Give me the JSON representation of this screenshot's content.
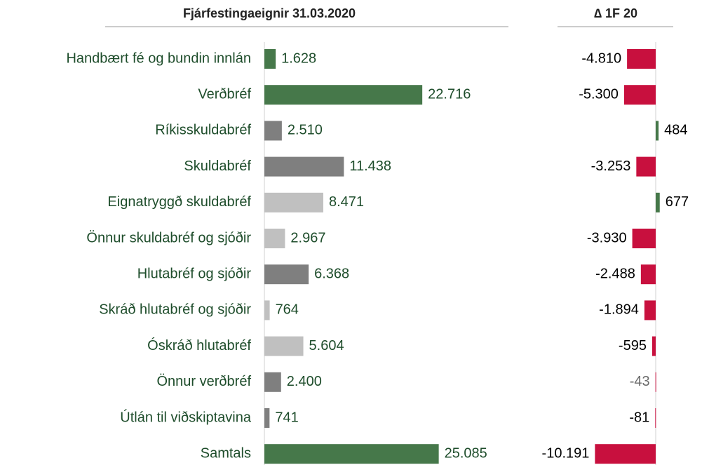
{
  "chart_data": [
    {
      "type": "bar",
      "orientation": "horizontal",
      "title": "Fjárfestingaeignir 31.03.2020",
      "categories": [
        "Handbært fé og bundin innlán",
        "Verðbréf",
        "Ríkisskuldabréf",
        "Skuldabréf",
        "Eignatryggð skuldabréf",
        "Önnur skuldabréf og sjóðir",
        "Hlutabréf og sjóðir",
        "Skráð hlutabréf og sjóðir",
        "Óskráð hlutabréf",
        "Önnur verðbréf",
        "Útlán til viðskiptavina",
        "Samtals"
      ],
      "values": [
        1628,
        22716,
        2510,
        11438,
        8471,
        2967,
        6368,
        764,
        5604,
        2400,
        741,
        25085
      ],
      "value_labels": [
        "1.628",
        "22.716",
        "2.510",
        "11.438",
        "8.471",
        "2.967",
        "6.368",
        "764",
        "5.604",
        "2.400",
        "741",
        "25.085"
      ],
      "colors": [
        "#46784a",
        "#46784a",
        "#7f7f7f",
        "#7f7f7f",
        "#c0c0c0",
        "#c0c0c0",
        "#7f7f7f",
        "#c0c0c0",
        "#c0c0c0",
        "#7f7f7f",
        "#7f7f7f",
        "#46784a"
      ],
      "xlim": [
        0,
        34000
      ]
    },
    {
      "type": "bar",
      "orientation": "horizontal",
      "title": "∆ 1F 20",
      "values": [
        -4810,
        -5300,
        484,
        -3253,
        677,
        -3930,
        -2488,
        -1894,
        -595,
        -43,
        -81,
        -10191
      ],
      "value_labels": [
        "-4.810",
        "-5.300",
        "484",
        "-3.253",
        "677",
        "-3.930",
        "-2.488",
        "-1.894",
        "-595",
        "-43",
        "-81",
        "-10.191"
      ],
      "colors": [
        "#c8103e",
        "#c8103e",
        "#46784a",
        "#c8103e",
        "#46784a",
        "#c8103e",
        "#c8103e",
        "#c8103e",
        "#c8103e",
        "#c8103e",
        "#c8103e",
        "#c8103e"
      ],
      "value_label_colors": [
        "#000000",
        "#000000",
        "#000000",
        "#000000",
        "#000000",
        "#000000",
        "#000000",
        "#000000",
        "#000000",
        "#6b6b6b",
        "#000000",
        "#000000"
      ],
      "xlim": [
        -11000,
        6000
      ]
    }
  ]
}
